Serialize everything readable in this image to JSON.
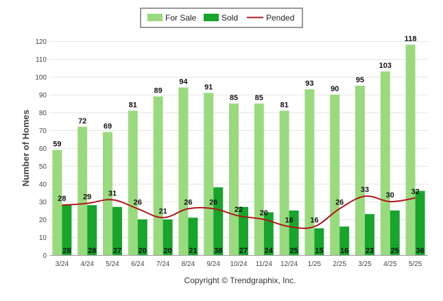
{
  "chart_data": {
    "type": "bar",
    "ylabel": "Number of Homes",
    "ylim": [
      0,
      120
    ],
    "yticks": [
      0,
      10,
      20,
      30,
      40,
      50,
      60,
      70,
      80,
      90,
      100,
      110,
      120
    ],
    "categories": [
      "3/24",
      "4/24",
      "5/24",
      "6/24",
      "7/24",
      "8/24",
      "9/24",
      "10/24",
      "11/24",
      "12/24",
      "1/25",
      "2/25",
      "3/25",
      "4/25",
      "5/25"
    ],
    "series": [
      {
        "name": "For Sale",
        "type": "bar",
        "color": "#9ADA7E",
        "values": [
          59,
          72,
          69,
          81,
          89,
          94,
          91,
          85,
          85,
          81,
          93,
          90,
          95,
          103,
          118
        ]
      },
      {
        "name": "Sold",
        "type": "bar",
        "color": "#17A52C",
        "values": [
          28,
          28,
          27,
          20,
          20,
          21,
          38,
          27,
          24,
          25,
          15,
          16,
          23,
          25,
          36
        ]
      },
      {
        "name": "Pended",
        "type": "line",
        "color": "#B0151B",
        "values": [
          28,
          29,
          31,
          26,
          21,
          26,
          26,
          22,
          20,
          16,
          16,
          26,
          33,
          30,
          32
        ]
      }
    ],
    "legend_position": "top-center",
    "grid": true
  },
  "footer": {
    "copyright": "Copyright © Trendgraphix, Inc."
  }
}
